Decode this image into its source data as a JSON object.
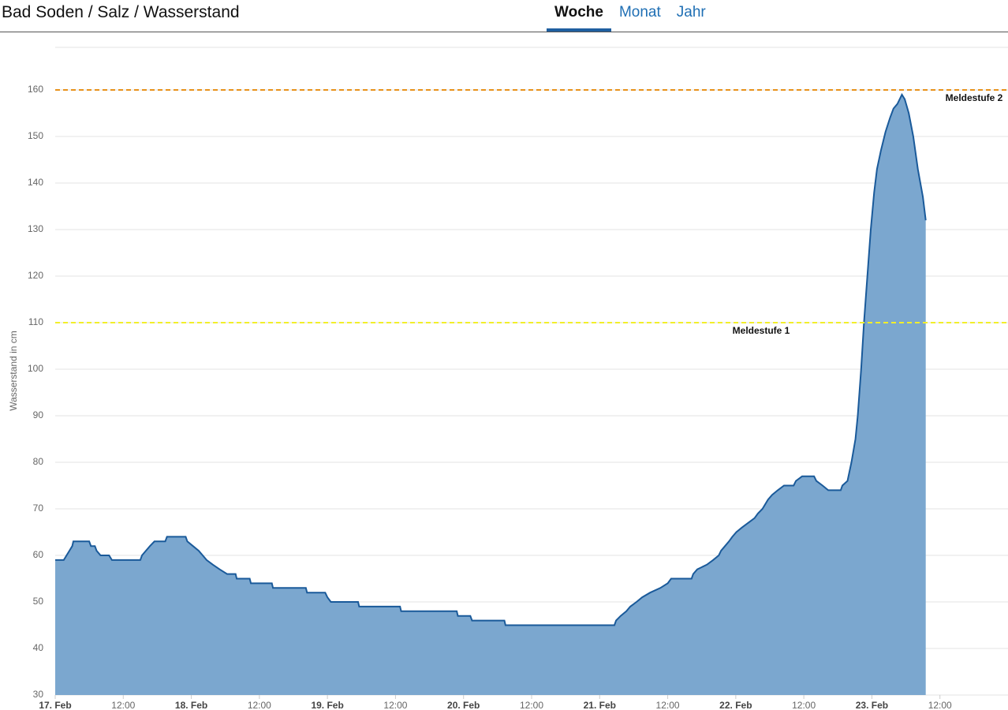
{
  "header": {
    "title": "Bad Soden / Salz / Wasserstand"
  },
  "tabs": {
    "items": [
      "Woche",
      "Monat",
      "Jahr"
    ],
    "active": 0
  },
  "chart_data": {
    "type": "area",
    "y_label": "Wasserstand in cm",
    "x": [
      0,
      1.5,
      2,
      2.5,
      3,
      3.2,
      6,
      6.3,
      7,
      7.3,
      8,
      9.5,
      10,
      15,
      15.3,
      16,
      16.7,
      17.5,
      19.4,
      19.7,
      23,
      23.3,
      24.3,
      25.3,
      26,
      26.7,
      27.8,
      29,
      30.3,
      31.8,
      32,
      34.3,
      34.5,
      38.2,
      38.4,
      44.2,
      44.4,
      47.6,
      48,
      48.6,
      53.4,
      53.6,
      60.8,
      61,
      70.8,
      71,
      73.2,
      73.5,
      79.2,
      79.4,
      98.6,
      98.9,
      99.7,
      100.7,
      101.4,
      102.5,
      103.5,
      104.9,
      106.7,
      108,
      108.6,
      112.2,
      112.5,
      113.2,
      114.9,
      116,
      117,
      117.4,
      118.1,
      118.8,
      119.4,
      120.1,
      121.1,
      122.2,
      123.3,
      123.9,
      124.7,
      125.7,
      126.4,
      127.4,
      128.5,
      130.2,
      130.6,
      131.7,
      133.8,
      134.2,
      135.3,
      136.3,
      138.5,
      138.8,
      139.7,
      140.4,
      141.1,
      141.5,
      142.1,
      142.6,
      143.2,
      143.8,
      144.4,
      144.9,
      145.6,
      146.4,
      147.2,
      147.8,
      148.5,
      149.3,
      149.8,
      150.5,
      151.3,
      152.1,
      153,
      153.5
    ],
    "series": [
      {
        "name": "Wasserstand",
        "color": "#1a5a9a",
        "fill": "#7ba7cf",
        "values": [
          59,
          59,
          60,
          61,
          62,
          63,
          63,
          62,
          62,
          61,
          60,
          60,
          59,
          59,
          60,
          61,
          62,
          63,
          63,
          64,
          64,
          63,
          62,
          61,
          60,
          59,
          58,
          57,
          56,
          56,
          55,
          55,
          54,
          54,
          53,
          53,
          52,
          52,
          51,
          50,
          50,
          49,
          49,
          48,
          48,
          47,
          47,
          46,
          46,
          45,
          45,
          46,
          47,
          48,
          49,
          50,
          51,
          52,
          53,
          54,
          55,
          55,
          56,
          57,
          58,
          59,
          60,
          61,
          62,
          63,
          64,
          65,
          66,
          67,
          68,
          69,
          70,
          72,
          73,
          74,
          75,
          75,
          76,
          77,
          77,
          76,
          75,
          74,
          74,
          75,
          76,
          80,
          85,
          90,
          100,
          110,
          120,
          130,
          138,
          143,
          147,
          151,
          154,
          156,
          157,
          159,
          158,
          155,
          150,
          143,
          137,
          132
        ]
      }
    ],
    "xlim": [
      0,
      168
    ],
    "xticks": [
      {
        "value": 0,
        "label": "17. Feb"
      },
      {
        "value": 12,
        "label": "12:00"
      },
      {
        "value": 24,
        "label": "18. Feb"
      },
      {
        "value": 36,
        "label": "12:00"
      },
      {
        "value": 48,
        "label": "19. Feb"
      },
      {
        "value": 60,
        "label": "12:00"
      },
      {
        "value": 72,
        "label": "20. Feb"
      },
      {
        "value": 84,
        "label": "12:00"
      },
      {
        "value": 96,
        "label": "21. Feb"
      },
      {
        "value": 108,
        "label": "12:00"
      },
      {
        "value": 120,
        "label": "22. Feb"
      },
      {
        "value": 132,
        "label": "12:00"
      },
      {
        "value": 144,
        "label": "23. Feb"
      },
      {
        "value": 156,
        "label": "12:00"
      }
    ],
    "ylim": [
      30,
      170
    ],
    "yticks": [
      30,
      40,
      50,
      60,
      70,
      80,
      90,
      100,
      110,
      120,
      130,
      140,
      150,
      160
    ],
    "grid": true,
    "thresholds": [
      {
        "label": "Meldestufe 1",
        "value": 110,
        "color": "#f2ee2a"
      },
      {
        "label": "Meldestufe 2",
        "value": 160,
        "color": "#e8921a"
      }
    ]
  }
}
